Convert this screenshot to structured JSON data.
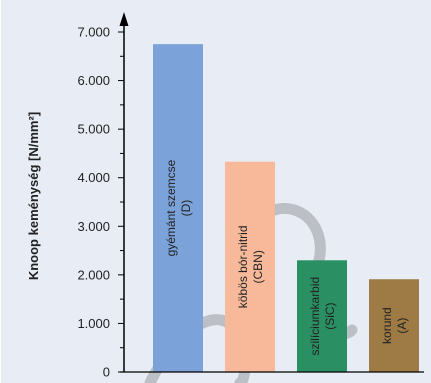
{
  "chart_data": {
    "type": "bar",
    "ylabel": "Knoop keménység [N/mm²]",
    "ylim": [
      0,
      7000
    ],
    "ytick_values": [
      0,
      1000,
      2000,
      3000,
      4000,
      5000,
      6000,
      7000
    ],
    "ytick_labels": [
      "0",
      "1.000",
      "2.000",
      "3.000",
      "4.000",
      "5.000",
      "6.000",
      "7.000"
    ],
    "categories": [
      "gyémánt szemcse (D)",
      "köbös bór-nitrid (CBN)",
      "szilíciumkarbid (SiC)",
      "korund (A)"
    ],
    "values": [
      6750,
      4330,
      2300,
      1910
    ],
    "bar_label_lines": [
      [
        "gyémánt szemcse",
        "(D)"
      ],
      [
        "köbös bór-nitrid",
        "(CBN)"
      ],
      [
        "szilíciumkarbid",
        "(SiC)"
      ],
      [
        "korund",
        "(A)"
      ]
    ],
    "colors": [
      "#7ba3d9",
      "#f8b99a",
      "#2a8f62",
      "#9e7a44"
    ],
    "grid": false,
    "background_color": "#e8ecf5"
  }
}
